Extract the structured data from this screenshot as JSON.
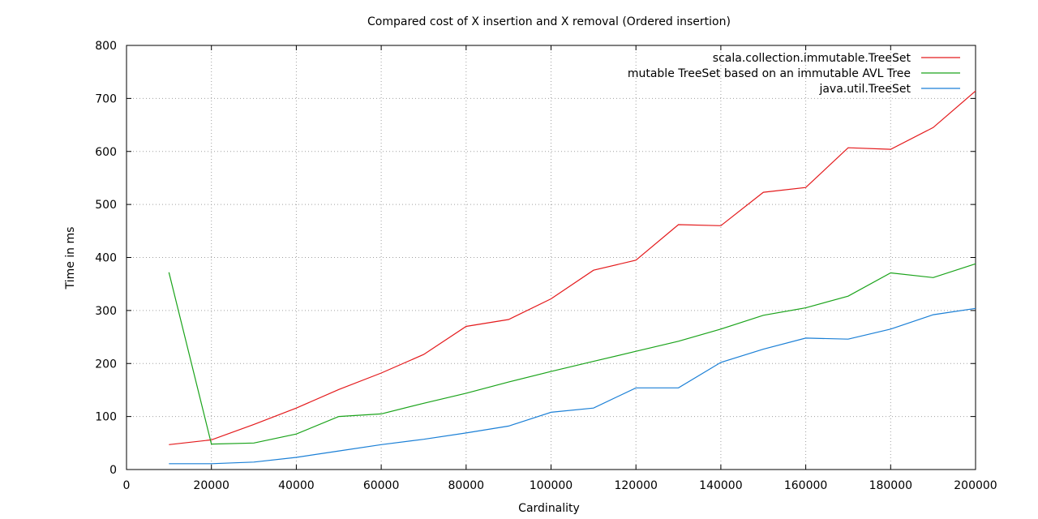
{
  "chart_data": {
    "type": "line",
    "title": "Compared cost of X insertion and X removal (Ordered insertion)",
    "xlabel": "Cardinality",
    "ylabel": "Time in ms",
    "xlim": [
      0,
      200000
    ],
    "ylim": [
      0,
      800
    ],
    "x_ticks": [
      0,
      20000,
      40000,
      60000,
      80000,
      100000,
      120000,
      140000,
      160000,
      180000,
      200000
    ],
    "y_ticks": [
      0,
      100,
      200,
      300,
      400,
      500,
      600,
      700,
      800
    ],
    "grid": true,
    "legend_position": "top-right",
    "x": [
      10000,
      20000,
      30000,
      40000,
      50000,
      60000,
      70000,
      80000,
      90000,
      100000,
      110000,
      120000,
      130000,
      140000,
      150000,
      160000,
      170000,
      180000,
      190000,
      200000
    ],
    "series": [
      {
        "name": "scala.collection.immutable.TreeSet",
        "color": "#e41a1c",
        "values": [
          47,
          56,
          85,
          116,
          151,
          182,
          217,
          270,
          283,
          322,
          376,
          395,
          462,
          460,
          523,
          532,
          607,
          604,
          645,
          714
        ]
      },
      {
        "name": "mutable TreeSet based on an immutable AVL Tree",
        "color": "#1aa31a",
        "values": [
          372,
          48,
          50,
          67,
          100,
          105,
          125,
          144,
          165,
          185,
          204,
          223,
          242,
          265,
          291,
          305,
          327,
          371,
          362,
          388
        ]
      },
      {
        "name": "java.util.TreeSet",
        "color": "#1a7fd6",
        "values": [
          11,
          11,
          14,
          23,
          35,
          47,
          57,
          69,
          82,
          108,
          116,
          154,
          154,
          202,
          227,
          248,
          246,
          265,
          292,
          304
        ]
      }
    ]
  }
}
